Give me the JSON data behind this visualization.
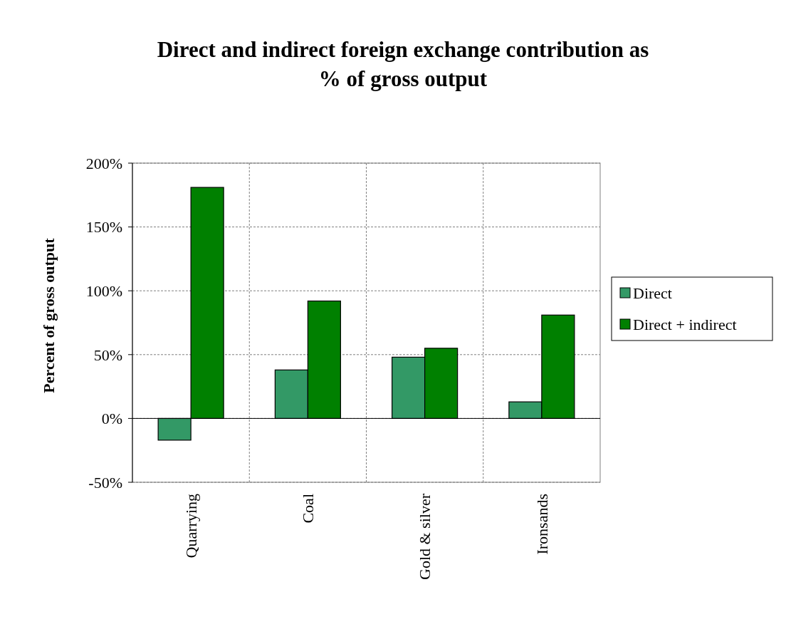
{
  "chart_data": {
    "type": "bar",
    "title": "Direct and indirect foreign exchange contribution as\n% of gross output",
    "ylabel": "Percent of gross output",
    "categories": [
      "Quarrying",
      "Coal",
      "Gold & silver",
      "Ironsands"
    ],
    "series": [
      {
        "name": "Direct",
        "color": "#339966",
        "values": [
          -17,
          38,
          48,
          13
        ]
      },
      {
        "name": "Direct + indirect",
        "color": "#008000",
        "values": [
          181,
          92,
          55,
          81
        ]
      }
    ],
    "ylim": [
      -50,
      200
    ],
    "yticks": [
      {
        "value": -50,
        "label": "-50%"
      },
      {
        "value": 0,
        "label": "0%"
      },
      {
        "value": 50,
        "label": "50%"
      },
      {
        "value": 100,
        "label": "100%"
      },
      {
        "value": 150,
        "label": "150%"
      },
      {
        "value": 200,
        "label": "200%"
      }
    ],
    "grid": true,
    "legend": "right"
  }
}
